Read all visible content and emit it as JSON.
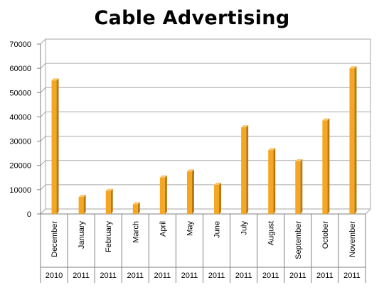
{
  "chart_data": {
    "type": "bar",
    "title": "Cable Advertising",
    "xlabel": "",
    "ylabel": "",
    "ylim": [
      0,
      70000
    ],
    "yticks": [
      0,
      10000,
      20000,
      30000,
      40000,
      50000,
      60000,
      70000
    ],
    "grid": true,
    "legend": "none",
    "categories": [
      {
        "month": "December",
        "year": "2010"
      },
      {
        "month": "January",
        "year": "2011"
      },
      {
        "month": "February",
        "year": "2011"
      },
      {
        "month": "March",
        "year": "2011"
      },
      {
        "month": "April",
        "year": "2011"
      },
      {
        "month": "May",
        "year": "2011"
      },
      {
        "month": "June",
        "year": "2011"
      },
      {
        "month": "July",
        "year": "2011"
      },
      {
        "month": "August",
        "year": "2011"
      },
      {
        "month": "September",
        "year": "2011"
      },
      {
        "month": "October",
        "year": "2011"
      },
      {
        "month": "November",
        "year": "2011"
      }
    ],
    "values": [
      55000,
      7000,
      9500,
      4000,
      15000,
      17500,
      12000,
      35700,
      26300,
      21700,
      38500,
      60000
    ],
    "colors": {
      "bar_front": "#f5a623",
      "bar_side": "#b87a10",
      "bar_top": "#fbc96a",
      "gridline": "#a6a6a6",
      "axis": "#7f7f7f"
    }
  }
}
